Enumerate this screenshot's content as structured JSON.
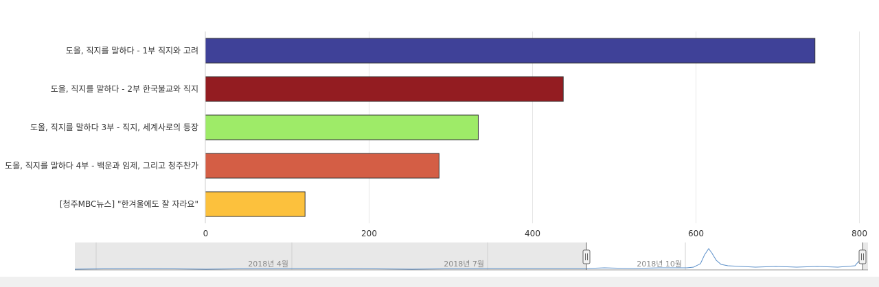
{
  "chart_data": {
    "type": "bar",
    "orientation": "horizontal",
    "categories": [
      "도올, 직지를 말하다 - 1부 직지와 고려",
      "도올, 직지를 말하다 - 2부 한국불교와 직지",
      "도올, 직지를 말하다 3부 - 직지, 세계사로의 등장",
      "도올, 직지를 말하다 4부 - 백운과 임제, 그리고 청주찬가",
      "[청주MBC뉴스] \"한겨울에도 잘 자라요\""
    ],
    "values": [
      746,
      438,
      334,
      286,
      122
    ],
    "colors": [
      "#3f4198",
      "#931c21",
      "#9eeb68",
      "#d45e45",
      "#fcc13d"
    ],
    "xlim": [
      0,
      800
    ],
    "xticks": [
      "0",
      "200",
      "400",
      "600",
      "800"
    ],
    "grid": true,
    "legend": "none"
  },
  "navigator": {
    "labels": [
      "2018년 4월",
      "2018년 7월",
      "2018년 10월"
    ]
  }
}
